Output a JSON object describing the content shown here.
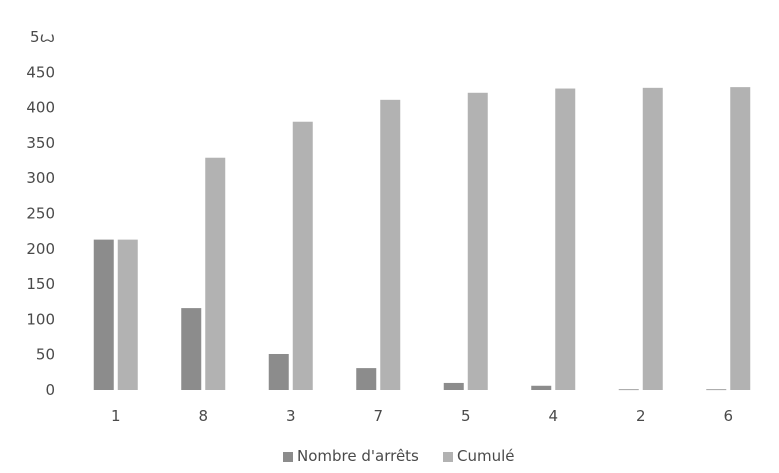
{
  "chart_data": {
    "type": "bar",
    "categories": [
      "1",
      "8",
      "3",
      "7",
      "5",
      "4",
      "2",
      "6"
    ],
    "series": [
      {
        "name": "Nombre d'arrêts",
        "values": [
          213,
          116,
          51,
          31,
          10,
          6,
          1,
          1
        ],
        "color": "#8c8c8c"
      },
      {
        "name": "Cumulé",
        "values": [
          213,
          329,
          380,
          411,
          421,
          427,
          428,
          429
        ],
        "color": "#b2b2b2"
      }
    ],
    "ylim": [
      0,
      500
    ],
    "yticks": [
      0,
      50,
      100,
      150,
      200,
      250,
      300,
      350,
      400,
      450,
      500
    ],
    "ytick_labels": [
      "0",
      "50",
      "100",
      "150",
      "200",
      "250",
      "300",
      "350",
      "400",
      "450",
      "5ꙍ"
    ],
    "grid": false,
    "legend_position": "bottom"
  }
}
